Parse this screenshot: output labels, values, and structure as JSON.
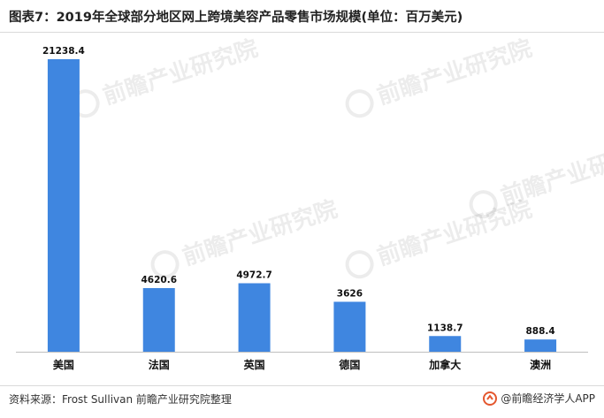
{
  "title": "图表7：2019年全球部分地区网上跨境美容产品零售市场规模(单位：百万美元)",
  "chart_data": {
    "type": "bar",
    "categories": [
      "美国",
      "法国",
      "英国",
      "德国",
      "加拿大",
      "澳洲"
    ],
    "values": [
      21238.4,
      4620.6,
      4972.7,
      3626,
      1138.7,
      888.4
    ],
    "value_labels": [
      "21238.4",
      "4620.6",
      "4972.7",
      "3626",
      "1138.7",
      "888.4"
    ],
    "ylim": [
      0,
      21238.4
    ],
    "grid": false,
    "legend": "none",
    "bar_color": "#3f86e0",
    "axis_color": "#bfbfbf"
  },
  "footer": {
    "source": "资料来源：Frost Sullivan 前瞻产业研究院整理",
    "brand": "@前瞻经济学人APP",
    "brand_color": "#e4572e"
  },
  "watermark": {
    "text": "前瞻产业研究院"
  }
}
